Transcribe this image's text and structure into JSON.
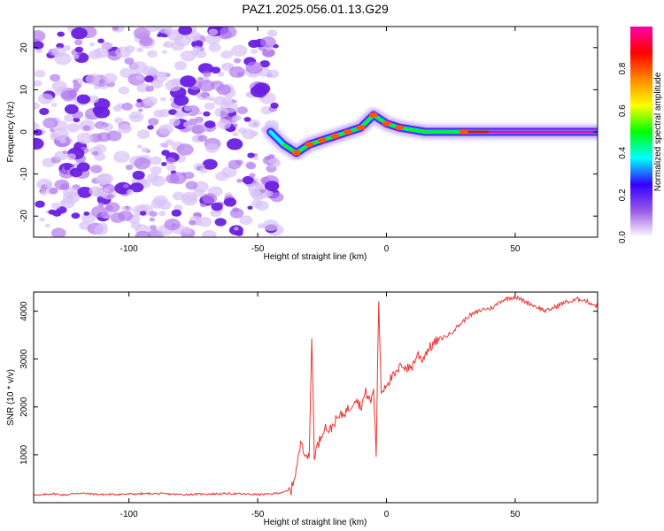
{
  "figure": {
    "title": "PAZ1.2025.056.01.13.G29"
  },
  "chart_data": [
    {
      "type": "heatmap",
      "title": "PAZ1.2025.056.01.13.G29",
      "xlabel": "Height of straight line (km)",
      "ylabel": "Frequency (Hz)",
      "xlim": [
        -137,
        82
      ],
      "ylim": [
        -25,
        25
      ],
      "x_ticks": [
        -100,
        -50,
        0,
        50
      ],
      "y_ticks": [
        -20,
        -10,
        0,
        10,
        20
      ],
      "grid": false,
      "colorbar": {
        "label": "Normalized spectral amplitude",
        "range": [
          0,
          1
        ],
        "ticks": [
          "0.0",
          "0.2",
          "0.4",
          "0.6",
          "0.8"
        ],
        "colors": [
          "#ffffff",
          "#9b59e6",
          "#3300ff",
          "#00ffff",
          "#00ff00",
          "#ffff00",
          "#ff8800",
          "#ff0000",
          "#ff00aa"
        ]
      },
      "noise_region": {
        "x": [
          -137,
          -42
        ],
        "y": [
          -25,
          25
        ],
        "amplitude": "low"
      },
      "signal_track": {
        "x": [
          -45,
          -40,
          -35,
          -30,
          -25,
          -20,
          -15,
          -10,
          -5,
          0,
          5,
          10,
          15,
          20,
          30,
          40,
          60,
          82
        ],
        "y": [
          0,
          -3,
          -5,
          -3,
          -2,
          -1,
          0,
          1,
          4,
          2,
          1,
          0.5,
          0,
          0,
          0,
          0,
          0,
          0
        ],
        "amplitude": [
          0.3,
          0.45,
          0.55,
          0.55,
          0.55,
          0.55,
          0.55,
          0.55,
          0.55,
          0.5,
          0.5,
          0.45,
          0.45,
          0.45,
          0.65,
          1.0,
          1.0,
          1.0
        ]
      }
    },
    {
      "type": "line",
      "xlabel": "Height of straight line (km)",
      "ylabel": "SNR (10 * v/v)",
      "xlim": [
        -137,
        82
      ],
      "ylim": [
        0,
        4400
      ],
      "x_ticks": [
        -100,
        -50,
        0,
        50
      ],
      "y_ticks": [
        1000,
        2000,
        3000,
        4000
      ],
      "grid": false,
      "series": [
        {
          "color": "#ee3333",
          "x": [
            -137,
            -135,
            -130,
            -125,
            -120,
            -110,
            -100,
            -90,
            -80,
            -70,
            -60,
            -50,
            -45,
            -40,
            -37,
            -35,
            -33,
            -32,
            -31,
            -30,
            -29,
            -28,
            -26,
            -24,
            -22,
            -20,
            -18,
            -16,
            -14,
            -12,
            -10,
            -8,
            -6,
            -5,
            -4,
            -3,
            -2,
            0,
            2,
            4,
            6,
            8,
            10,
            12,
            14,
            16,
            18,
            20,
            22,
            24,
            26,
            28,
            30,
            32,
            34,
            36,
            38,
            40,
            42,
            44,
            46,
            48,
            50,
            52,
            54,
            56,
            58,
            60,
            62,
            64,
            66,
            68,
            70,
            72,
            74,
            76,
            78,
            80,
            82
          ],
          "y": [
            180,
            150,
            190,
            160,
            200,
            170,
            180,
            190,
            170,
            180,
            190,
            170,
            180,
            220,
            260,
            700,
            1300,
            1100,
            1000,
            900,
            3500,
            1000,
            1300,
            1600,
            1500,
            1700,
            1800,
            1900,
            2000,
            2200,
            2000,
            2300,
            2100,
            2400,
            1000,
            4200,
            2300,
            2500,
            2600,
            2700,
            2900,
            2800,
            2850,
            3100,
            3000,
            3200,
            3300,
            3400,
            3450,
            3500,
            3600,
            3700,
            3800,
            3900,
            3950,
            4000,
            4050,
            4050,
            4100,
            4200,
            4250,
            4280,
            4300,
            4250,
            4200,
            4150,
            4100,
            4050,
            4000,
            4050,
            4100,
            4150,
            4200,
            4200,
            4250,
            4250,
            4200,
            4150,
            4100
          ]
        }
      ]
    }
  ]
}
